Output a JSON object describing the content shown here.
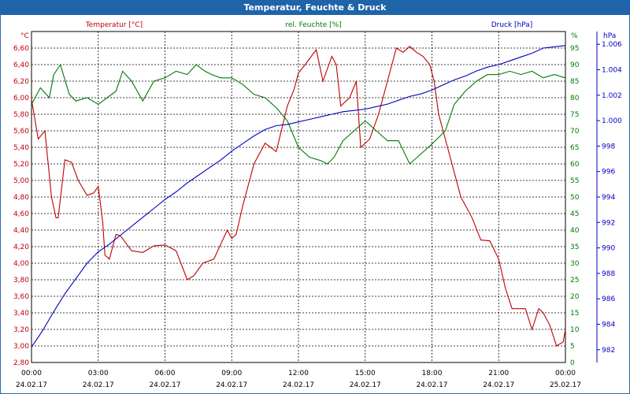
{
  "window": {
    "title": "Temperatur, Feuchte & Druck"
  },
  "colors": {
    "temperature": "#c00000",
    "humidity": "#007a00",
    "pressure": "#0000c0",
    "grid": "#000000"
  },
  "chart_data": {
    "type": "line",
    "title": "Temperatur, Feuchte & Druck",
    "x_tick_labels": [
      {
        "time": "00:00",
        "date": "24.02.17"
      },
      {
        "time": "03:00",
        "date": "24.02.17"
      },
      {
        "time": "06:00",
        "date": "24.02.17"
      },
      {
        "time": "09:00",
        "date": "24.02.17"
      },
      {
        "time": "12:00",
        "date": "24.02.17"
      },
      {
        "time": "15:00",
        "date": "24.02.17"
      },
      {
        "time": "18:00",
        "date": "24.02.17"
      },
      {
        "time": "21:00",
        "date": "24.02.17"
      },
      {
        "time": "00:00",
        "date": "25.02.17"
      }
    ],
    "xlim_hours": [
      0,
      24
    ],
    "axes": {
      "temperature": {
        "label": "Temperatur [°C]",
        "unit": "°C",
        "ylim": [
          2.8,
          6.8
        ],
        "ticks": [
          "6,60",
          "6,40",
          "6,20",
          "6,00",
          "5,80",
          "5,60",
          "5,40",
          "5,20",
          "5,00",
          "4,80",
          "4,60",
          "4,40",
          "4,20",
          "4,00",
          "3,80",
          "3,60",
          "3,40",
          "3,20",
          "3,00",
          "2,80"
        ]
      },
      "humidity": {
        "label": "rel. Feuchte [%]",
        "unit": "%",
        "ylim": [
          0,
          100
        ],
        "ticks": [
          "95",
          "90",
          "85",
          "80",
          "75",
          "70",
          "65",
          "60",
          "55",
          "50",
          "45",
          "40",
          "35",
          "30",
          "25",
          "20",
          "15",
          "10",
          "5",
          "0"
        ]
      },
      "pressure": {
        "label": "Druck [hPa]",
        "unit": "hPa",
        "ylim": [
          981,
          1007
        ],
        "ticks": [
          "1.006",
          "1.004",
          "1.002",
          "1.000",
          "998",
          "996",
          "994",
          "992",
          "990",
          "988",
          "986",
          "984",
          "982"
        ]
      }
    },
    "series": [
      {
        "name": "Temperatur",
        "axis": "temperature",
        "color": "#c00000",
        "x": [
          0,
          0.3,
          0.6,
          0.9,
          1.1,
          1.2,
          1.5,
          1.8,
          2.1,
          2.5,
          2.8,
          3.0,
          3.2,
          3.3,
          3.5,
          3.8,
          4.0,
          4.5,
          5.0,
          5.5,
          6.0,
          6.5,
          7.0,
          7.3,
          7.7,
          8.2,
          8.8,
          9.0,
          9.2,
          9.5,
          10.0,
          10.5,
          11.0,
          11.5,
          11.8,
          12.0,
          12.3,
          12.8,
          13.1,
          13.5,
          13.7,
          13.9,
          14.3,
          14.6,
          14.8,
          15.2,
          15.6,
          16.0,
          16.4,
          16.7,
          17.0,
          17.3,
          17.6,
          17.9,
          18.1,
          18.3,
          18.8,
          19.3,
          19.8,
          20.2,
          20.6,
          21.0,
          21.3,
          21.6,
          21.9,
          22.2,
          22.5,
          22.8,
          23.0,
          23.3,
          23.6,
          23.9,
          24.0
        ],
        "y": [
          5.98,
          5.5,
          5.6,
          4.8,
          4.55,
          4.55,
          5.25,
          5.22,
          5.0,
          4.82,
          4.85,
          4.93,
          4.5,
          4.1,
          4.05,
          4.35,
          4.33,
          4.15,
          4.13,
          4.21,
          4.22,
          4.15,
          3.8,
          3.85,
          4.0,
          4.05,
          4.4,
          4.3,
          4.35,
          4.7,
          5.2,
          5.45,
          5.35,
          5.9,
          6.1,
          6.3,
          6.4,
          6.58,
          6.2,
          6.5,
          6.4,
          5.9,
          6.0,
          6.2,
          5.4,
          5.5,
          5.8,
          6.2,
          6.6,
          6.55,
          6.62,
          6.55,
          6.5,
          6.4,
          6.2,
          5.8,
          5.3,
          4.8,
          4.55,
          4.28,
          4.27,
          4.05,
          3.7,
          3.45,
          3.45,
          3.45,
          3.2,
          3.45,
          3.4,
          3.25,
          3.0,
          3.05,
          3.2
        ]
      },
      {
        "name": "rel. Feuchte",
        "axis": "humidity",
        "color": "#007a00",
        "x": [
          0,
          0.4,
          0.8,
          1.0,
          1.3,
          1.7,
          2.0,
          2.5,
          3.0,
          3.4,
          3.8,
          4.1,
          4.5,
          5.0,
          5.5,
          6.0,
          6.5,
          7.0,
          7.4,
          7.8,
          8.1,
          8.5,
          9.0,
          9.5,
          10.0,
          10.5,
          11.0,
          11.5,
          12.0,
          12.5,
          13.0,
          13.3,
          13.6,
          14.0,
          14.5,
          15.0,
          15.5,
          16.0,
          16.5,
          17.0,
          17.5,
          18.0,
          18.3,
          18.6,
          19.0,
          19.5,
          20.0,
          20.5,
          21.0,
          21.5,
          22.0,
          22.5,
          23.0,
          23.5,
          24.0
        ],
        "y": [
          78,
          83,
          80,
          87,
          90,
          81,
          79,
          80,
          78,
          80,
          82,
          88,
          85,
          79,
          85,
          86,
          88,
          87,
          90,
          88,
          87,
          86,
          86,
          84,
          81,
          80,
          77,
          73,
          65,
          62,
          61,
          60,
          62,
          67,
          70,
          73,
          70,
          67,
          67,
          60,
          63,
          66,
          68,
          70,
          78,
          82,
          85,
          87,
          87,
          88,
          87,
          88,
          86,
          87,
          86
        ]
      },
      {
        "name": "Druck",
        "axis": "pressure",
        "color": "#0000c0",
        "x": [
          0,
          0.5,
          1,
          1.5,
          2,
          2.5,
          3,
          3.5,
          4,
          4.5,
          5,
          5.5,
          6,
          6.5,
          7,
          7.5,
          8,
          8.5,
          9,
          9.5,
          10,
          10.5,
          11,
          11.5,
          12,
          12.5,
          13,
          13.5,
          14,
          14.5,
          15,
          15.5,
          16,
          16.5,
          17,
          17.5,
          18,
          18.5,
          19,
          19.5,
          20,
          20.5,
          21,
          21.5,
          22,
          22.5,
          23,
          23.5,
          24
        ],
        "y": [
          982.2,
          983.5,
          985.0,
          986.4,
          987.6,
          988.8,
          989.7,
          990.3,
          991.0,
          991.7,
          992.4,
          993.1,
          993.8,
          994.4,
          995.1,
          995.7,
          996.3,
          996.9,
          997.6,
          998.2,
          998.8,
          999.3,
          999.6,
          999.7,
          999.9,
          1000.1,
          1000.3,
          1000.5,
          1000.7,
          1000.8,
          1000.9,
          1001.1,
          1001.3,
          1001.6,
          1001.9,
          1002.1,
          1002.4,
          1002.8,
          1003.2,
          1003.5,
          1003.9,
          1004.2,
          1004.4,
          1004.7,
          1005.0,
          1005.3,
          1005.7,
          1005.8,
          1005.9
        ]
      }
    ]
  }
}
